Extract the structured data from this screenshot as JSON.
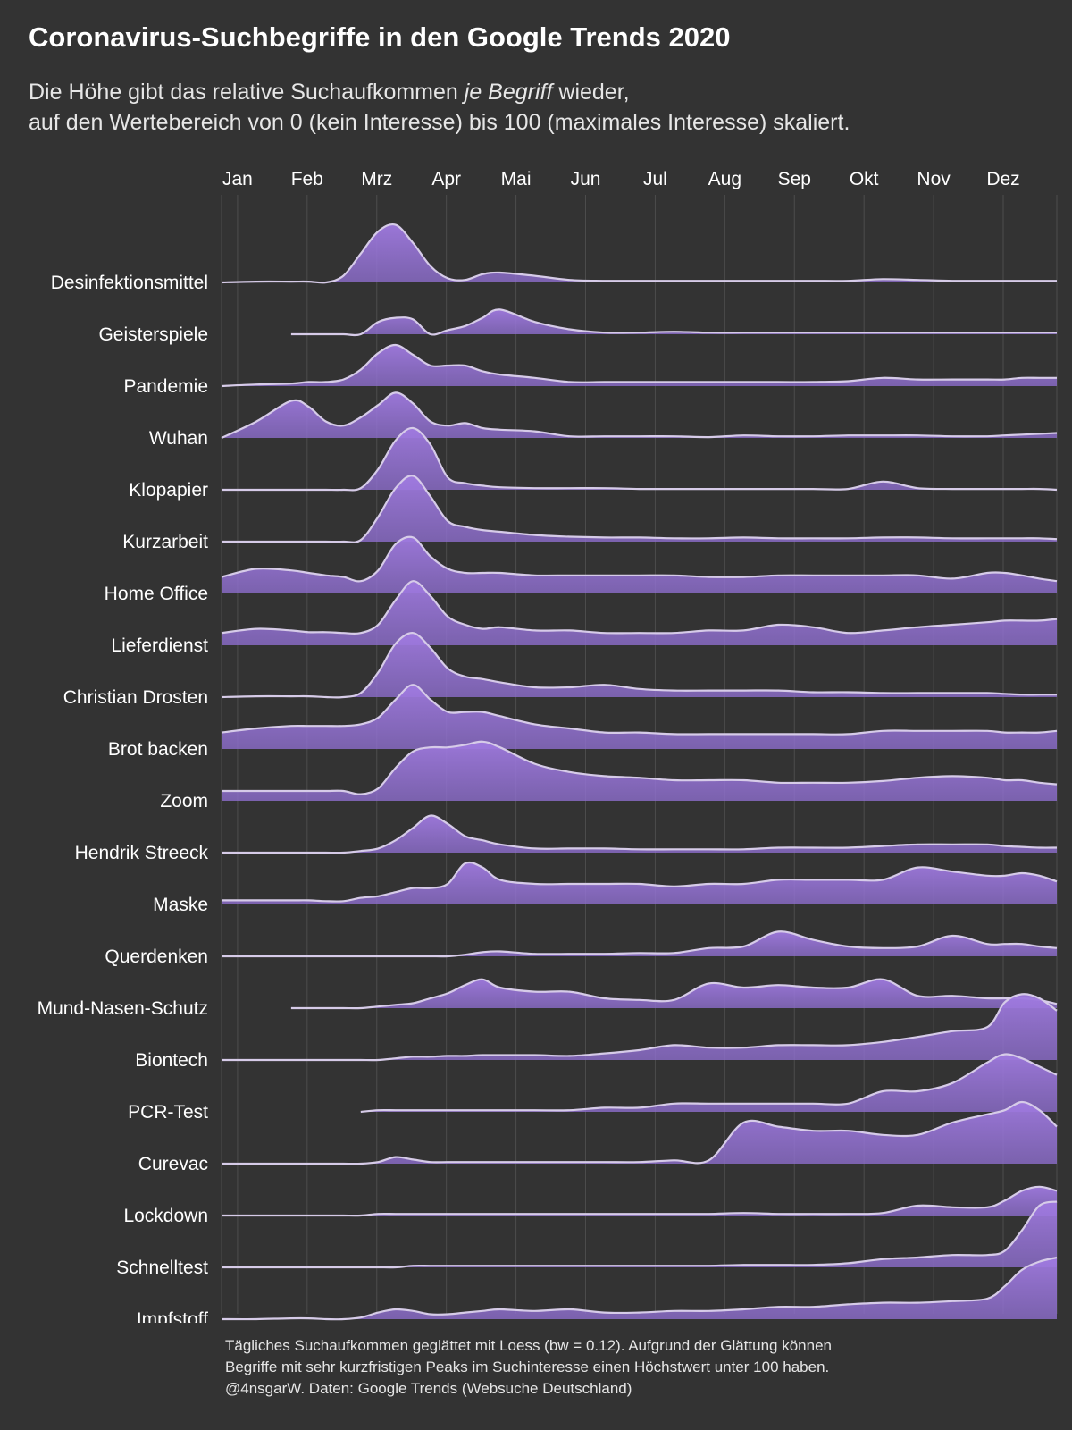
{
  "title": "Coronavirus-Suchbegriffe in den Google Trends 2020",
  "subtitle": {
    "line1_before": "Die Höhe gibt das relative Suchaufkommen ",
    "line1_emph": "je Begriff",
    "line1_after": " wieder,",
    "line2": "auf den Wertebereich von 0 (kein Interesse) bis 100 (maximales Interesse) skaliert."
  },
  "caption": {
    "line1": "Tägliches Suchaufkommen geglättet mit Loess (bw = 0.12). Aufgrund der Glättung können",
    "line2": "Begriffe mit sehr kurzfristigen Peaks im Suchinteresse einen Höchstwert unter 100 haben.",
    "line3": "@4nsgarW. Daten: Google Trends (Websuche Deutschland)"
  },
  "colors": {
    "background": "#333333",
    "fill": "#8f6fd0",
    "fill_peak": "#a07ae0",
    "line": "#d6cbe8",
    "grid": "#4d4d4d",
    "text": "#ffffff"
  },
  "chart_data": {
    "type": "area",
    "subtype": "ridgeline",
    "x_unit": "month of 2020",
    "xlim": [
      0,
      12
    ],
    "ylim": [
      0,
      100
    ],
    "x_tick_labels": [
      "Jan",
      "Feb",
      "Mrz",
      "Apr",
      "Mai",
      "Jun",
      "Jul",
      "Aug",
      "Sep",
      "Okt",
      "Nov",
      "Dez"
    ],
    "x_tick_positions": [
      0.23,
      1.23,
      2.23,
      3.23,
      4.23,
      5.23,
      6.23,
      7.23,
      8.23,
      9.23,
      10.23,
      11.23
    ],
    "x": [
      0,
      0.5,
      1,
      1.25,
      1.5,
      1.75,
      2,
      2.25,
      2.5,
      2.75,
      3,
      3.25,
      3.5,
      3.75,
      4,
      4.5,
      5,
      5.5,
      6,
      6.5,
      7,
      7.5,
      8,
      8.5,
      9,
      9.5,
      10,
      10.5,
      11,
      11.25,
      11.5,
      11.75,
      12
    ],
    "series": [
      {
        "name": "Desinfektionsmittel",
        "values": [
          0,
          1,
          1,
          1,
          0,
          8,
          35,
          62,
          70,
          48,
          20,
          5,
          3,
          10,
          12,
          8,
          3,
          2,
          2,
          2,
          2,
          2,
          2,
          2,
          2,
          4,
          3,
          2,
          2,
          2,
          2,
          2,
          2
        ]
      },
      {
        "name": "Geisterspiele",
        "values": [
          null,
          null,
          0,
          0,
          0,
          0,
          0,
          15,
          20,
          18,
          0,
          5,
          10,
          20,
          30,
          15,
          6,
          2,
          2,
          3,
          2,
          2,
          2,
          2,
          2,
          2,
          2,
          2,
          2,
          2,
          2,
          2,
          2
        ]
      },
      {
        "name": "Pandemie",
        "values": [
          0,
          2,
          3,
          5,
          5,
          8,
          20,
          40,
          50,
          38,
          25,
          25,
          25,
          18,
          14,
          10,
          5,
          5,
          5,
          5,
          5,
          5,
          5,
          5,
          6,
          10,
          8,
          8,
          8,
          8,
          10,
          10,
          10
        ]
      },
      {
        "name": "Wuhan",
        "values": [
          0,
          20,
          45,
          38,
          20,
          15,
          25,
          40,
          55,
          42,
          20,
          15,
          18,
          12,
          10,
          8,
          2,
          2,
          2,
          2,
          1,
          3,
          2,
          2,
          3,
          3,
          3,
          2,
          2,
          3,
          4,
          5,
          6
        ]
      },
      {
        "name": "Klopapier",
        "values": [
          0,
          0,
          0,
          0,
          0,
          0,
          2,
          25,
          60,
          75,
          55,
          15,
          8,
          5,
          3,
          2,
          2,
          2,
          1,
          1,
          1,
          1,
          1,
          1,
          1,
          10,
          2,
          1,
          1,
          1,
          1,
          1,
          0
        ]
      },
      {
        "name": "Kurzarbeit",
        "values": [
          0,
          0,
          0,
          0,
          0,
          0,
          2,
          30,
          65,
          80,
          55,
          25,
          18,
          14,
          12,
          8,
          6,
          5,
          5,
          4,
          4,
          5,
          4,
          4,
          4,
          5,
          5,
          4,
          4,
          4,
          4,
          4,
          3
        ]
      },
      {
        "name": "Home Office",
        "values": [
          20,
          30,
          28,
          25,
          22,
          20,
          15,
          28,
          60,
          68,
          45,
          30,
          25,
          25,
          25,
          22,
          22,
          22,
          22,
          22,
          20,
          20,
          22,
          22,
          22,
          22,
          22,
          18,
          25,
          25,
          22,
          18,
          15
        ]
      },
      {
        "name": "Lieferdienst",
        "values": [
          15,
          20,
          18,
          16,
          16,
          15,
          15,
          25,
          55,
          78,
          60,
          35,
          25,
          20,
          22,
          18,
          18,
          15,
          15,
          15,
          18,
          18,
          25,
          22,
          15,
          18,
          22,
          25,
          28,
          30,
          30,
          30,
          32
        ]
      },
      {
        "name": "Christian Drosten",
        "values": [
          0,
          1,
          1,
          1,
          0,
          0,
          5,
          30,
          65,
          78,
          60,
          35,
          25,
          22,
          18,
          12,
          12,
          15,
          10,
          8,
          8,
          8,
          8,
          6,
          6,
          5,
          5,
          5,
          5,
          4,
          3,
          3,
          3
        ]
      },
      {
        "name": "Brot backen",
        "values": [
          20,
          25,
          28,
          28,
          28,
          28,
          30,
          38,
          60,
          78,
          60,
          45,
          45,
          45,
          40,
          30,
          25,
          20,
          20,
          18,
          18,
          18,
          18,
          18,
          18,
          22,
          22,
          22,
          22,
          20,
          20,
          20,
          22
        ]
      },
      {
        "name": "Zoom",
        "values": [
          12,
          12,
          12,
          12,
          12,
          12,
          8,
          15,
          40,
          60,
          65,
          65,
          68,
          72,
          65,
          45,
          35,
          30,
          28,
          25,
          25,
          25,
          22,
          22,
          22,
          24,
          28,
          30,
          28,
          25,
          25,
          22,
          20
        ]
      },
      {
        "name": "Hendrik Streeck",
        "values": [
          0,
          0,
          0,
          0,
          0,
          0,
          2,
          5,
          15,
          30,
          45,
          35,
          20,
          15,
          10,
          5,
          5,
          5,
          4,
          4,
          4,
          4,
          6,
          6,
          6,
          8,
          10,
          10,
          10,
          8,
          7,
          6,
          6
        ]
      },
      {
        "name": "Maske",
        "values": [
          5,
          5,
          5,
          5,
          4,
          4,
          8,
          10,
          15,
          20,
          20,
          25,
          50,
          45,
          30,
          25,
          25,
          25,
          25,
          22,
          25,
          25,
          30,
          30,
          30,
          30,
          45,
          40,
          35,
          35,
          38,
          35,
          28
        ]
      },
      {
        "name": "Querdenken",
        "values": [
          0,
          0,
          0,
          0,
          0,
          0,
          0,
          0,
          0,
          0,
          0,
          0,
          2,
          5,
          6,
          3,
          3,
          3,
          4,
          4,
          10,
          12,
          30,
          20,
          12,
          10,
          12,
          25,
          15,
          15,
          15,
          12,
          10
        ]
      },
      {
        "name": "Mund-Nasen-Schutz",
        "values": [
          null,
          null,
          0,
          0,
          0,
          0,
          0,
          2,
          4,
          6,
          12,
          18,
          28,
          35,
          25,
          20,
          20,
          12,
          10,
          10,
          30,
          25,
          28,
          25,
          25,
          35,
          15,
          15,
          12,
          12,
          12,
          10,
          5
        ]
      },
      {
        "name": "Biontech",
        "values": [
          0,
          0,
          0,
          0,
          0,
          0,
          0,
          0,
          2,
          4,
          4,
          5,
          5,
          6,
          6,
          6,
          5,
          8,
          12,
          18,
          15,
          15,
          18,
          18,
          18,
          22,
          28,
          35,
          40,
          70,
          80,
          75,
          60
        ]
      },
      {
        "name": "PCR-Test",
        "values": [
          null,
          null,
          null,
          null,
          null,
          null,
          0,
          2,
          2,
          2,
          2,
          2,
          2,
          2,
          2,
          2,
          2,
          5,
          5,
          10,
          10,
          10,
          10,
          10,
          10,
          25,
          25,
          35,
          60,
          70,
          65,
          55,
          45
        ]
      },
      {
        "name": "Curevac",
        "values": [
          0,
          0,
          0,
          0,
          0,
          0,
          0,
          2,
          8,
          5,
          2,
          2,
          2,
          2,
          2,
          2,
          2,
          2,
          2,
          4,
          4,
          50,
          45,
          40,
          40,
          35,
          35,
          50,
          60,
          65,
          75,
          65,
          45
        ]
      },
      {
        "name": "Lockdown",
        "values": [
          0,
          0,
          0,
          0,
          0,
          0,
          0,
          2,
          2,
          2,
          2,
          2,
          2,
          2,
          2,
          2,
          2,
          2,
          2,
          2,
          2,
          3,
          2,
          2,
          2,
          3,
          12,
          10,
          10,
          18,
          30,
          35,
          30
        ]
      },
      {
        "name": "Schnelltest",
        "values": [
          0,
          0,
          0,
          0,
          0,
          0,
          0,
          0,
          0,
          2,
          2,
          2,
          2,
          2,
          2,
          2,
          2,
          2,
          2,
          2,
          2,
          3,
          3,
          3,
          5,
          10,
          12,
          15,
          15,
          20,
          45,
          75,
          80
        ]
      },
      {
        "name": "Impfstoff",
        "values": [
          0,
          0,
          1,
          1,
          0,
          0,
          2,
          8,
          12,
          10,
          6,
          6,
          8,
          10,
          12,
          10,
          12,
          8,
          8,
          10,
          10,
          12,
          15,
          15,
          18,
          20,
          20,
          22,
          25,
          40,
          60,
          70,
          75
        ]
      }
    ]
  }
}
